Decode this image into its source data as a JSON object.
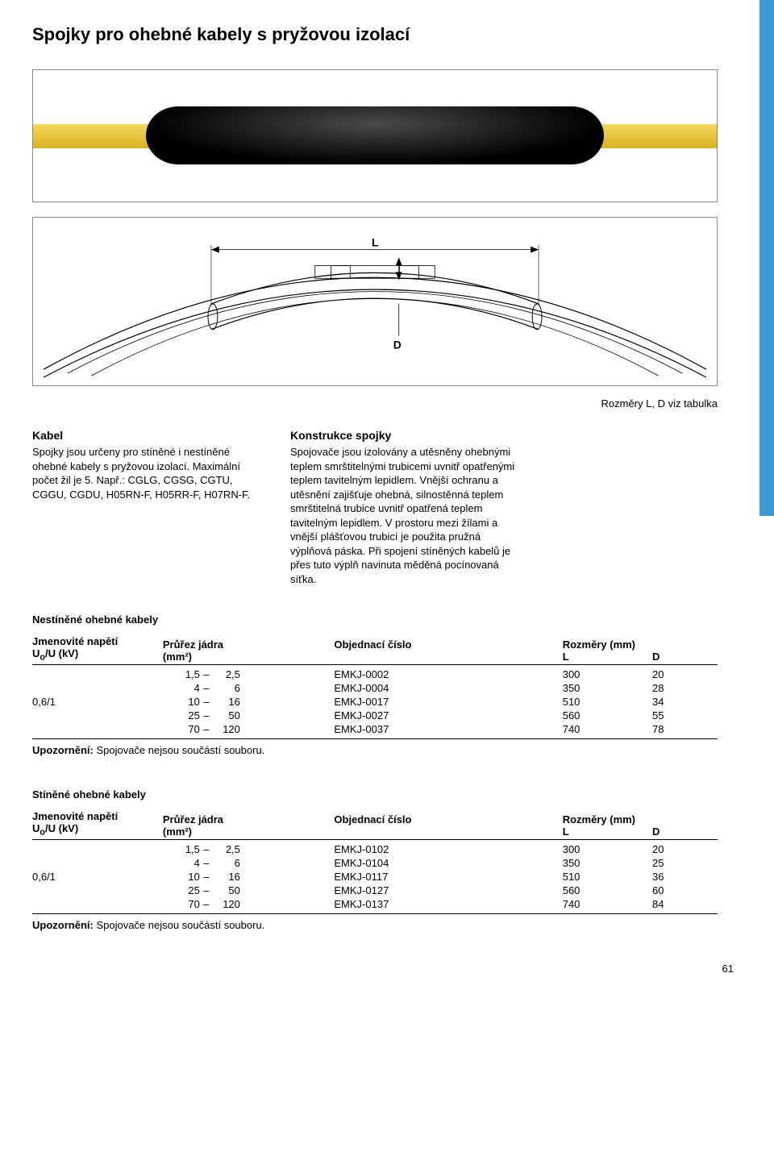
{
  "title": "Spojky pro ohebné kabely s pryžovou izolací",
  "diagram": {
    "label_L": "L",
    "label_D": "D"
  },
  "caption": "Rozměry L, D viz tabulka",
  "left_col": {
    "heading": "Kabel",
    "text": "Spojky jsou určeny pro stíněné i nestíněné ohebné kabely s pryžovou izolací. Maximální počet žil je 5. Např.: CGLG, CGSG, CGTU, CGGU, CGDU, H05RN-F, H05RR-F, H07RN-F."
  },
  "right_col": {
    "heading": "Konstrukce spojky",
    "text": "Spojovače jsou izolovány a utěsněny ohebnými teplem smrštitelnými trubicemi uvnitř opatřenými teplem tavitelným lepidlem. Vnější ochranu a utěsnění zajišťuje ohebná, silnostěnná teplem smrštitelná trubice uvnitř opatřená teplem tavitelným lepidlem. V prostoru mezi žílami a vnější plášťovou trubicí je použita pružná výplňová páska. Při spojení stíněných kabelů je přes tuto výplň navinuta měděná pocínovaná síťka."
  },
  "headers": {
    "voltage": "Jmenovité napětí",
    "voltage_unit": "Uo/U (kV)",
    "cross": "Průřez jádra",
    "cross_unit": "(mm²)",
    "order": "Objednací číslo",
    "dims": "Rozměry (mm)",
    "L": "L",
    "D": "D"
  },
  "table1": {
    "title": "Nestíněné ohebné kabely",
    "voltage": "0,6/1",
    "rows": [
      {
        "c_min": "1,5",
        "c_max": "2,5",
        "order": "EMKJ-0002",
        "L": "300",
        "D": "20"
      },
      {
        "c_min": "4",
        "c_max": "6",
        "order": "EMKJ-0004",
        "L": "350",
        "D": "28"
      },
      {
        "c_min": "10",
        "c_max": "16",
        "order": "EMKJ-0017",
        "L": "510",
        "D": "34"
      },
      {
        "c_min": "25",
        "c_max": "50",
        "order": "EMKJ-0027",
        "L": "560",
        "D": "55"
      },
      {
        "c_min": "70",
        "c_max": "120",
        "order": "EMKJ-0037",
        "L": "740",
        "D": "78"
      }
    ]
  },
  "table2": {
    "title": "Stíněné ohebné kabely",
    "voltage": "0,6/1",
    "rows": [
      {
        "c_min": "1,5",
        "c_max": "2,5",
        "order": "EMKJ-0102",
        "L": "300",
        "D": "20"
      },
      {
        "c_min": "4",
        "c_max": "6",
        "order": "EMKJ-0104",
        "L": "350",
        "D": "25"
      },
      {
        "c_min": "10",
        "c_max": "16",
        "order": "EMKJ-0117",
        "L": "510",
        "D": "36"
      },
      {
        "c_min": "25",
        "c_max": "50",
        "order": "EMKJ-0127",
        "L": "560",
        "D": "60"
      },
      {
        "c_min": "70",
        "c_max": "120",
        "order": "EMKJ-0137",
        "L": "740",
        "D": "84"
      }
    ]
  },
  "note": {
    "label": "Upozornění:",
    "text": " Spojovače nejsou součástí souboru."
  },
  "page_number": "61",
  "colors": {
    "side_tab": "#3a9bd4",
    "border": "#888888",
    "rule": "#000000",
    "cable_yellow_top": "#f5d860",
    "cable_yellow_bot": "#d9b020",
    "cable_black": "#151515"
  }
}
